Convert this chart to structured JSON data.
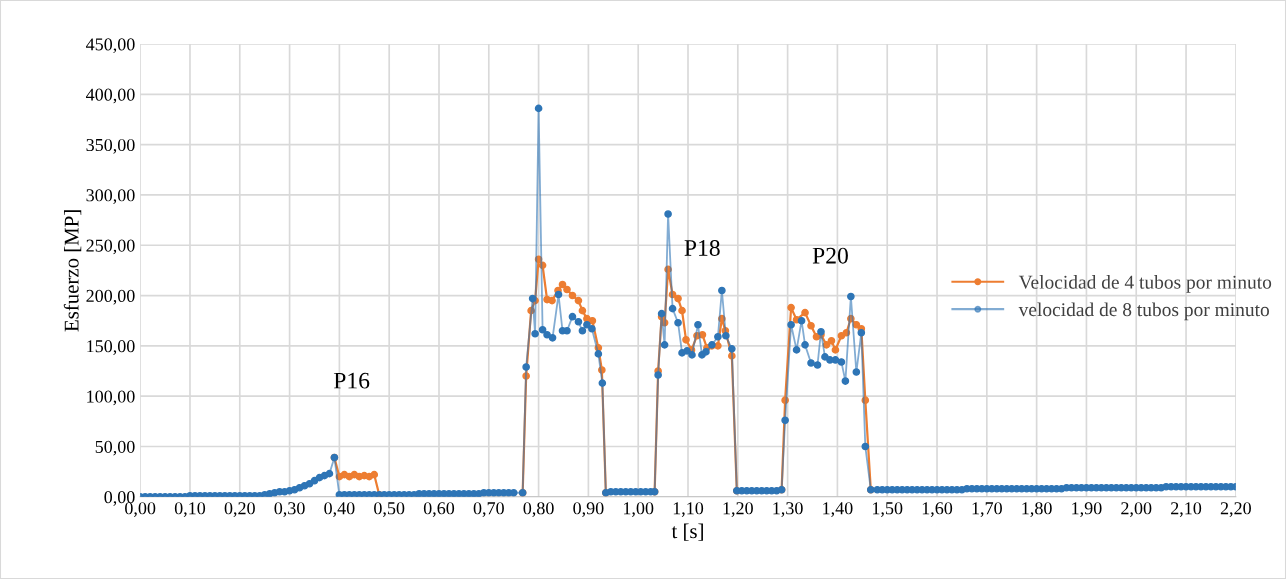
{
  "chart_data": {
    "type": "line",
    "xlabel": "t [s]",
    "ylabel": "Esfuerzo [MP]",
    "xlim": [
      0,
      2.2
    ],
    "ylim": [
      0,
      450
    ],
    "xticks": [
      {
        "value": 0,
        "label": "0,00"
      },
      {
        "value": 0.1,
        "label": "0,10"
      },
      {
        "value": 0.2,
        "label": "0,20"
      },
      {
        "value": 0.3,
        "label": "0,30"
      },
      {
        "value": 0.4,
        "label": "0,40"
      },
      {
        "value": 0.5,
        "label": "0,50"
      },
      {
        "value": 0.6,
        "label": "0,60"
      },
      {
        "value": 0.7,
        "label": "0,70"
      },
      {
        "value": 0.8,
        "label": "0,80"
      },
      {
        "value": 0.9,
        "label": "0,90"
      },
      {
        "value": 1.0,
        "label": "1,00"
      },
      {
        "value": 1.1,
        "label": "1,10"
      },
      {
        "value": 1.2,
        "label": "1,20"
      },
      {
        "value": 1.3,
        "label": "1,30"
      },
      {
        "value": 1.4,
        "label": "1,40"
      },
      {
        "value": 1.5,
        "label": "1,50"
      },
      {
        "value": 1.6,
        "label": "1,60"
      },
      {
        "value": 1.7,
        "label": "1,70"
      },
      {
        "value": 1.8,
        "label": "1,80"
      },
      {
        "value": 1.9,
        "label": "1,90"
      },
      {
        "value": 2.0,
        "label": "2,00"
      },
      {
        "value": 2.1,
        "label": "2,10"
      },
      {
        "value": 2.2,
        "label": "2,20"
      }
    ],
    "yticks": [
      {
        "value": 0,
        "label": "0,00"
      },
      {
        "value": 50,
        "label": "50,00"
      },
      {
        "value": 100,
        "label": "100,00"
      },
      {
        "value": 150,
        "label": "150,00"
      },
      {
        "value": 200,
        "label": "200,00"
      },
      {
        "value": 250,
        "label": "250,00"
      },
      {
        "value": 300,
        "label": "300,00"
      },
      {
        "value": 350,
        "label": "350,00"
      },
      {
        "value": 400,
        "label": "400,00"
      },
      {
        "value": 450,
        "label": "450,00"
      }
    ],
    "grid": true,
    "legend": "right",
    "marker": "circle",
    "line_style": "solid",
    "annotations": [
      "P16",
      "P18",
      "P20"
    ],
    "series": [
      {
        "name": "Velocidad de 4 tubos por minuto",
        "color": "#ed7d31",
        "x": [
          0.39,
          0.4,
          0.41,
          0.42,
          0.43,
          0.44,
          0.45,
          0.46,
          0.47,
          0.48,
          0.49,
          0.5,
          0.51,
          0.52,
          0.53,
          0.54,
          0.55,
          0.56,
          0.57,
          0.58,
          0.59,
          0.6,
          0.61,
          0.62,
          0.63,
          0.64,
          0.65,
          0.66,
          0.67,
          0.68,
          0.69,
          0.7,
          0.71,
          0.72,
          0.73,
          0.74,
          0.75,
          0.768,
          0.775,
          0.785,
          0.793,
          0.8,
          0.808,
          0.817,
          0.827,
          0.839,
          0.848,
          0.857,
          0.868,
          0.88,
          0.888,
          0.897,
          0.908,
          0.92,
          0.927,
          0.935,
          0.945,
          0.955,
          0.965,
          0.975,
          0.985,
          0.995,
          1.005,
          1.015,
          1.025,
          1.033,
          1.04,
          1.047,
          1.053,
          1.06,
          1.069,
          1.08,
          1.088,
          1.096,
          1.107,
          1.118,
          1.129,
          1.138,
          1.148,
          1.16,
          1.168,
          1.175,
          1.188,
          1.198,
          1.208,
          1.218,
          1.228,
          1.238,
          1.248,
          1.258,
          1.268,
          1.278,
          1.288,
          1.295,
          1.307,
          1.318,
          1.335,
          1.347,
          1.358,
          1.367,
          1.378,
          1.388,
          1.396,
          1.408,
          1.418,
          1.427,
          1.438,
          1.448,
          1.456,
          1.467
        ],
        "values": [
          39,
          20,
          22,
          20,
          22,
          20,
          21,
          20,
          22,
          2,
          null,
          null,
          null,
          null,
          null,
          null,
          null,
          null,
          null,
          null,
          null,
          null,
          null,
          null,
          null,
          null,
          null,
          null,
          null,
          null,
          null,
          null,
          null,
          null,
          null,
          null,
          null,
          4,
          120,
          185,
          195,
          236,
          230,
          196,
          195,
          205,
          211,
          206,
          200,
          195,
          185,
          177,
          175,
          148,
          126,
          4,
          null,
          null,
          null,
          null,
          null,
          null,
          null,
          null,
          null,
          5,
          125,
          179,
          173,
          226,
          201,
          197,
          185,
          156,
          146,
          160,
          161,
          148,
          150,
          150,
          177,
          165,
          140,
          6,
          null,
          null,
          null,
          null,
          null,
          null,
          null,
          null,
          7,
          96,
          188,
          176,
          183,
          170,
          159,
          161,
          151,
          155,
          146,
          160,
          163,
          177,
          171,
          167,
          96,
          7
        ]
      },
      {
        "name": "velocidad de 8 tubos por minuto",
        "color": "#2e75b6",
        "x": [
          0,
          0.01,
          0.02,
          0.03,
          0.04,
          0.05,
          0.06,
          0.07,
          0.08,
          0.09,
          0.1,
          0.11,
          0.12,
          0.13,
          0.14,
          0.15,
          0.16,
          0.17,
          0.18,
          0.19,
          0.2,
          0.21,
          0.22,
          0.23,
          0.24,
          0.25,
          0.26,
          0.27,
          0.28,
          0.29,
          0.3,
          0.31,
          0.32,
          0.33,
          0.34,
          0.35,
          0.36,
          0.37,
          0.38,
          0.39,
          0.4,
          0.41,
          0.42,
          0.43,
          0.44,
          0.45,
          0.46,
          0.47,
          0.48,
          0.49,
          0.5,
          0.51,
          0.52,
          0.53,
          0.54,
          0.55,
          0.56,
          0.57,
          0.58,
          0.59,
          0.6,
          0.61,
          0.62,
          0.63,
          0.64,
          0.65,
          0.66,
          0.67,
          0.68,
          0.69,
          0.7,
          0.71,
          0.72,
          0.73,
          0.74,
          0.75,
          0.768,
          0.775,
          0.788,
          0.793,
          0.8,
          0.808,
          0.817,
          0.828,
          0.84,
          0.848,
          0.857,
          0.868,
          0.88,
          0.888,
          0.897,
          0.907,
          0.92,
          0.928,
          0.935,
          0.945,
          0.955,
          0.965,
          0.975,
          0.985,
          0.995,
          1.005,
          1.015,
          1.025,
          1.033,
          1.04,
          1.047,
          1.053,
          1.06,
          1.069,
          1.08,
          1.088,
          1.098,
          1.108,
          1.12,
          1.128,
          1.136,
          1.148,
          1.16,
          1.168,
          1.176,
          1.188,
          1.198,
          1.208,
          1.218,
          1.228,
          1.238,
          1.248,
          1.258,
          1.268,
          1.278,
          1.288,
          1.295,
          1.307,
          1.318,
          1.328,
          1.335,
          1.347,
          1.36,
          1.367,
          1.375,
          1.385,
          1.396,
          1.408,
          1.416,
          1.427,
          1.438,
          1.448,
          1.456,
          1.467,
          1.48,
          1.49,
          1.5,
          1.51,
          1.52,
          1.53,
          1.54,
          1.55,
          1.56,
          1.57,
          1.58,
          1.59,
          1.6,
          1.61,
          1.62,
          1.63,
          1.64,
          1.65,
          1.66,
          1.67,
          1.68,
          1.69,
          1.7,
          1.71,
          1.72,
          1.73,
          1.74,
          1.75,
          1.76,
          1.77,
          1.78,
          1.79,
          1.8,
          1.81,
          1.82,
          1.83,
          1.84,
          1.85,
          1.86,
          1.87,
          1.88,
          1.89,
          1.9,
          1.91,
          1.92,
          1.93,
          1.94,
          1.95,
          1.96,
          1.97,
          1.98,
          1.99,
          2.0,
          2.01,
          2.02,
          2.03,
          2.04,
          2.05,
          2.06,
          2.07,
          2.08,
          2.09,
          2.1,
          2.11,
          2.12,
          2.13,
          2.14,
          2.15,
          2.16,
          2.17,
          2.18,
          2.19,
          2.2
        ],
        "values": [
          0,
          0,
          0,
          0,
          0,
          0,
          0,
          0,
          0,
          0,
          1,
          1,
          1,
          1,
          1,
          1,
          1,
          1,
          1,
          1,
          1,
          1,
          1,
          1,
          1,
          2,
          3,
          4,
          5,
          5,
          6,
          7,
          9,
          11,
          13,
          16,
          19,
          21,
          23,
          39,
          2,
          2,
          2,
          2,
          2,
          2,
          2,
          2,
          2,
          2,
          2,
          2,
          2,
          2,
          2,
          2,
          3,
          3,
          3,
          3,
          3,
          3,
          3,
          3,
          3,
          3,
          3,
          3,
          3,
          4,
          4,
          4,
          4,
          4,
          4,
          4,
          4,
          129,
          197,
          162,
          386,
          166,
          161,
          158,
          201,
          165,
          165,
          179,
          174,
          165,
          171,
          167,
          142,
          113,
          4,
          5,
          5,
          5,
          5,
          5,
          5,
          5,
          5,
          5,
          5,
          121,
          182,
          151,
          281,
          187,
          173,
          143,
          145,
          141,
          171,
          141,
          144,
          151,
          159,
          205,
          160,
          147,
          6,
          6,
          6,
          6,
          6,
          6,
          6,
          6,
          6,
          7,
          76,
          171,
          146,
          175,
          151,
          133,
          131,
          164,
          139,
          136,
          136,
          134,
          115,
          199,
          124,
          163,
          50,
          7,
          7,
          7,
          7,
          7,
          7,
          7,
          7,
          7,
          7,
          7,
          7,
          7,
          7,
          7,
          7,
          7,
          7,
          7,
          8,
          8,
          8,
          8,
          8,
          8,
          8,
          8,
          8,
          8,
          8,
          8,
          8,
          8,
          8,
          8,
          8,
          8,
          8,
          8,
          9,
          9,
          9,
          9,
          9,
          9,
          9,
          9,
          9,
          9,
          9,
          9,
          9,
          9,
          9,
          9,
          9,
          9,
          9,
          9,
          10,
          10,
          10,
          10,
          10,
          10,
          10,
          10,
          10,
          10,
          10,
          10,
          10,
          10,
          10
        ]
      }
    ]
  }
}
